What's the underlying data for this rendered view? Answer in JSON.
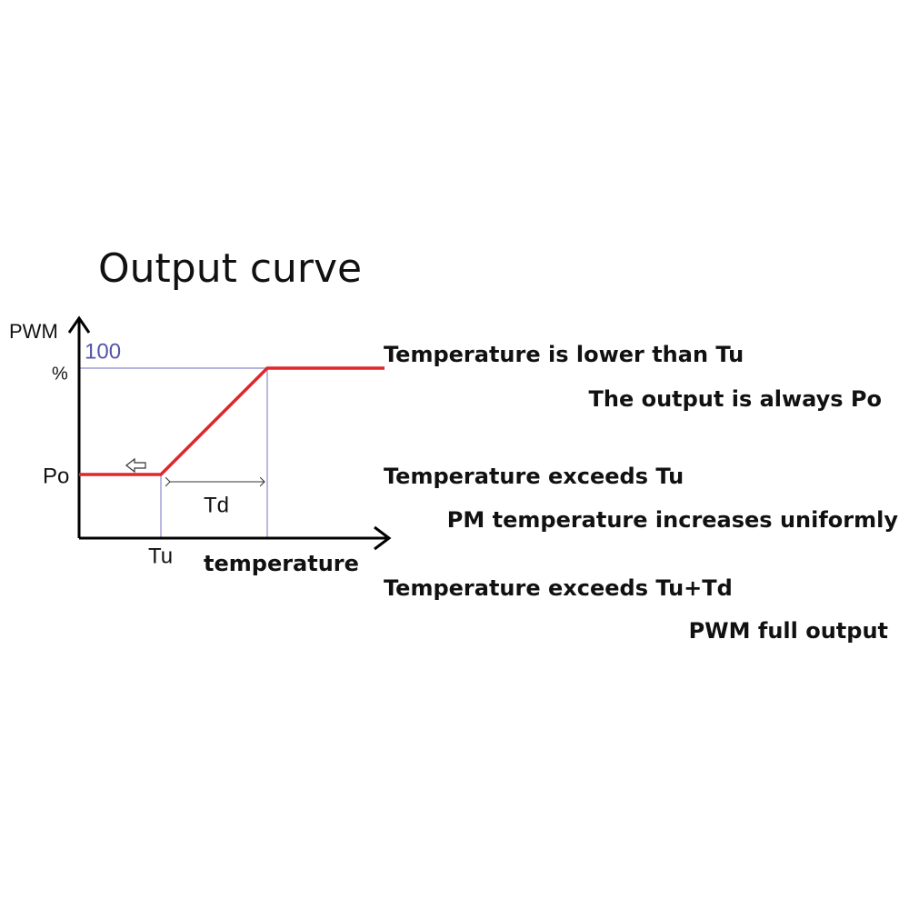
{
  "title": "Output curve",
  "axes": {
    "y_label": "PWM",
    "y_unit": "%",
    "y_max": "100",
    "x_label": "temperature",
    "po": "Po",
    "tu": "Tu",
    "td": "Td"
  },
  "notes": [
    {
      "heading": "Temperature is lower than Tu",
      "detail": "The output is always Po"
    },
    {
      "heading": "Temperature exceeds Tu",
      "detail": "PM temperature increases uniformly"
    },
    {
      "heading": "Temperature exceeds Tu+Td",
      "detail": "PWM full output"
    }
  ]
}
